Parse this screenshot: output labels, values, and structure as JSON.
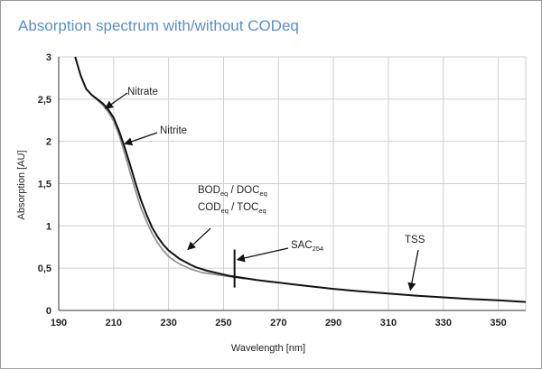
{
  "chart_data": {
    "type": "line",
    "title": "Absorption spectrum with/without CODeq",
    "xlabel": "Wavelength [nm]",
    "ylabel": "Absorption [AU]",
    "xlim": [
      190,
      360
    ],
    "ylim": [
      0,
      3
    ],
    "x_ticks": [
      "190",
      "210",
      "230",
      "250",
      "270",
      "290",
      "310",
      "330",
      "350"
    ],
    "y_ticks": [
      "0",
      "0,5",
      "1",
      "1,5",
      "2",
      "2,5",
      "3"
    ],
    "grid": true,
    "series": [
      {
        "color": "#111111",
        "x": [
          196,
          198,
          200,
          202,
          204,
          206,
          208,
          210,
          212,
          214,
          216,
          218,
          220,
          222,
          224,
          226,
          228,
          230,
          232,
          234,
          236,
          238,
          240,
          242,
          244,
          246,
          248,
          250,
          252,
          254,
          258,
          262,
          266,
          270,
          275,
          280,
          290,
          300,
          310,
          320,
          330,
          340,
          350,
          360
        ],
        "y": [
          3.0,
          2.78,
          2.62,
          2.55,
          2.5,
          2.45,
          2.38,
          2.28,
          2.12,
          1.93,
          1.72,
          1.5,
          1.3,
          1.13,
          0.98,
          0.87,
          0.78,
          0.71,
          0.66,
          0.61,
          0.575,
          0.54,
          0.51,
          0.49,
          0.47,
          0.455,
          0.44,
          0.425,
          0.41,
          0.4,
          0.38,
          0.36,
          0.345,
          0.33,
          0.31,
          0.29,
          0.255,
          0.225,
          0.2,
          0.175,
          0.155,
          0.135,
          0.12,
          0.1
        ]
      },
      {
        "color": "#8a8a8a",
        "x": [
          196,
          198,
          200,
          202,
          204,
          206,
          208,
          210,
          212,
          214,
          216,
          218,
          220,
          222,
          224,
          226,
          228,
          230,
          232,
          234,
          236,
          238,
          240,
          242,
          244,
          246,
          248,
          250,
          252,
          254,
          258
        ],
        "y": [
          3.0,
          2.78,
          2.62,
          2.55,
          2.49,
          2.43,
          2.35,
          2.24,
          2.07,
          1.86,
          1.63,
          1.41,
          1.21,
          1.05,
          0.91,
          0.8,
          0.71,
          0.64,
          0.59,
          0.55,
          0.52,
          0.49,
          0.47,
          0.45,
          0.44,
          0.43,
          0.42,
          0.41,
          0.4,
          0.39,
          0.375
        ]
      }
    ],
    "annotations": [
      {
        "name": "nitrate",
        "text": "Nitrate",
        "sub": "",
        "text2": "",
        "sub2": "",
        "text3": "",
        "sub3": "",
        "point": [
          207,
          2.39
        ]
      },
      {
        "name": "nitrite",
        "text": "Nitrite",
        "sub": "",
        "text2": "",
        "sub2": "",
        "text3": "",
        "sub3": "",
        "point": [
          214,
          1.97
        ]
      },
      {
        "name": "bod-doc-cod-toc",
        "text": "BOD",
        "sub": "eq",
        "text2": " / DOC",
        "sub2": "eq",
        "text3": "",
        "sub3": "",
        "point": [
          237,
          0.72
        ]
      },
      {
        "name": "cod-toc",
        "text": "COD",
        "sub": "eq",
        "text2": " / TOC",
        "sub2": "eq",
        "text3": "",
        "sub3": "",
        "point": null
      },
      {
        "name": "sac254",
        "text": "SAC",
        "sub": "254",
        "text2": "",
        "sub2": "",
        "text3": "",
        "sub3": "",
        "point": [
          255,
          0.6
        ]
      },
      {
        "name": "tss",
        "text": "TSS",
        "sub": "",
        "text2": "",
        "sub2": "",
        "text3": "",
        "sub3": "",
        "point": [
          318,
          0.24
        ]
      }
    ],
    "marker": {
      "x": 254,
      "y_from": 0.27,
      "y_to": 0.72
    }
  }
}
